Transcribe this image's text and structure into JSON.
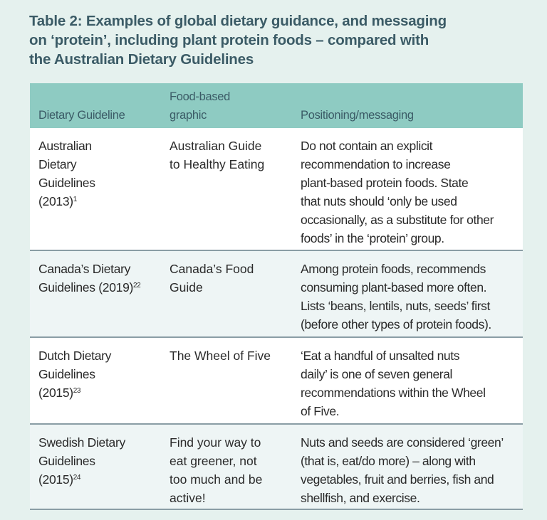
{
  "title": "Table 2: Examples of global dietary guidance, and messaging\non ‘protein’, including plant protein foods – compared with\nthe Australian Dietary Guidelines",
  "colors": {
    "header_bg": "#8ecbc2",
    "page_bg": "#e5f1ee",
    "title": "#3b5b66",
    "divider": "#8a9da5"
  },
  "table": {
    "headers": [
      "Dietary Guideline",
      "Food-based\ngraphic",
      "Positioning/messaging"
    ],
    "rows": [
      {
        "guideline": "Australian\nDietary\nGuidelines\n(2013)",
        "ref": "1",
        "graphic": "Australian Guide\nto Healthy Eating",
        "messaging": "Do not contain an explicit\nrecommendation to increase\nplant-based protein foods. State\nthat nuts should ‘only be used\noccasionally, as a substitute for other\nfoods’ in the ‘protein’ group."
      },
      {
        "guideline": "Canada’s Dietary\nGuidelines (2019)",
        "ref": "22",
        "graphic": "Canada’s Food\nGuide",
        "messaging": "Among protein foods, recommends\nconsuming plant-based more often.\nLists ‘beans, lentils, nuts, seeds’ first\n(before other types of protein foods)."
      },
      {
        "guideline": "Dutch Dietary\nGuidelines\n(2015)",
        "ref": "23",
        "graphic": "The Wheel of Five",
        "messaging": "‘Eat a handful of unsalted nuts\ndaily’ is one of seven general\nrecommendations within the Wheel\nof Five."
      },
      {
        "guideline": "Swedish Dietary\nGuidelines\n(2015)",
        "ref": "24",
        "graphic": "Find your way to\neat greener, not\ntoo much and be\nactive!",
        "messaging": "Nuts and seeds are considered ‘green’\n(that is, eat/do more) – along with\nvegetables, fruit and berries, fish and\nshellfish, and exercise."
      }
    ]
  }
}
